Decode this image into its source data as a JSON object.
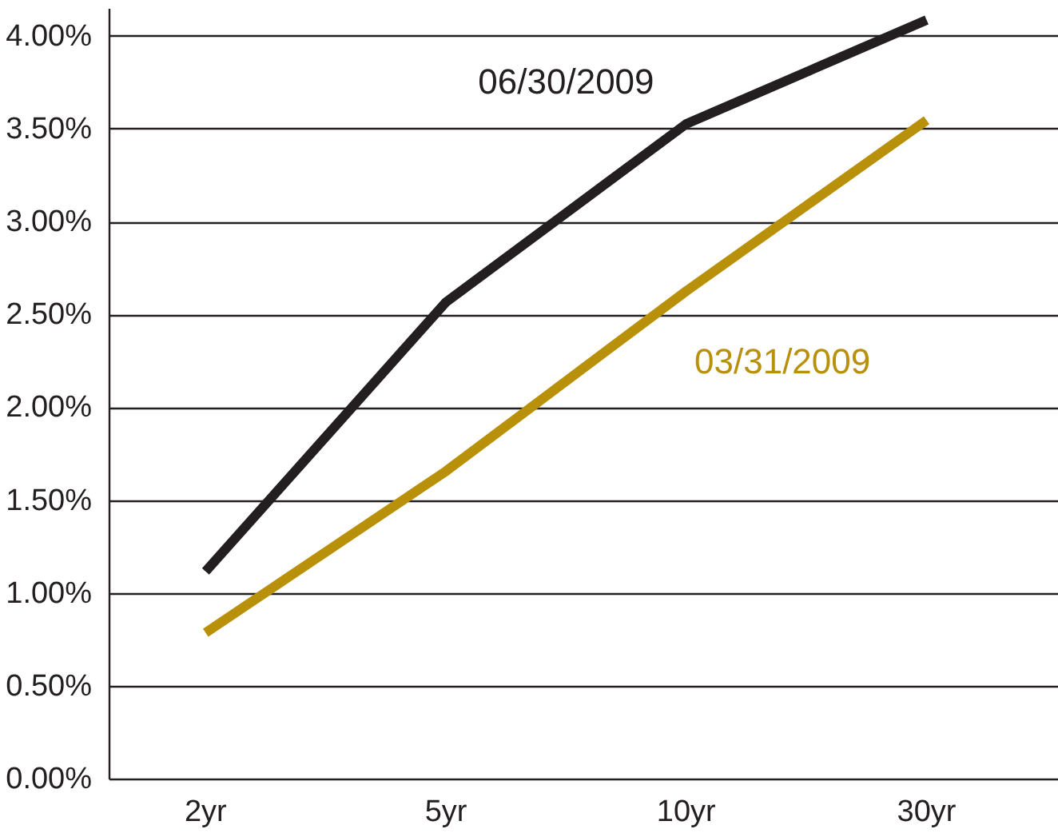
{
  "chart_data": {
    "type": "line",
    "categories": [
      "2yr",
      "5yr",
      "10yr",
      "30yr"
    ],
    "series": [
      {
        "name": "06/30/2009",
        "color": "#231f20",
        "values": [
          1.12,
          2.57,
          3.53,
          4.09
        ]
      },
      {
        "name": "03/31/2009",
        "color": "#b8900a",
        "values": [
          0.79,
          1.66,
          2.63,
          3.55
        ]
      }
    ],
    "ylim": [
      0,
      4.15
    ],
    "yticks": [
      {
        "value": 0,
        "label": "0.00%"
      },
      {
        "value": 0.5,
        "label": "0.50%"
      },
      {
        "value": 1,
        "label": "1.00%"
      },
      {
        "value": 1.5,
        "label": "1.50%"
      },
      {
        "value": 2,
        "label": "2.00%"
      },
      {
        "value": 2.5,
        "label": "2.50%"
      },
      {
        "value": 3,
        "label": "3.00%"
      },
      {
        "value": 3.5,
        "label": "3.50%"
      },
      {
        "value": 4,
        "label": "4.00%"
      }
    ],
    "grid": "y",
    "legend": false,
    "marker": "none",
    "line_style": "solid"
  }
}
